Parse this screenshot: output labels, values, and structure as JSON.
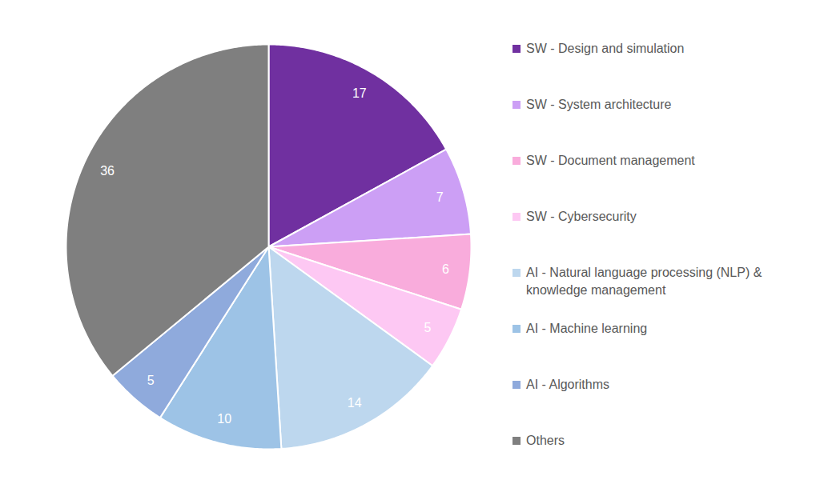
{
  "chart_data": {
    "type": "pie",
    "categories": [
      "SW - Design and simulation",
      "SW - System architecture",
      "SW - Document management",
      "SW - Cybersecurity",
      "AI - Natural language processing (NLP) & knowledge management",
      "AI - Machine learning",
      "AI - Algorithms",
      "Others"
    ],
    "values": [
      17,
      7,
      6,
      5,
      14,
      10,
      5,
      36
    ],
    "colors": [
      "#7030a0",
      "#cc9ff5",
      "#f9acdc",
      "#fdc8f3",
      "#bdd7ee",
      "#9dc3e6",
      "#8faadc",
      "#7f7f7f"
    ],
    "data_labels": true,
    "legend": "right"
  }
}
